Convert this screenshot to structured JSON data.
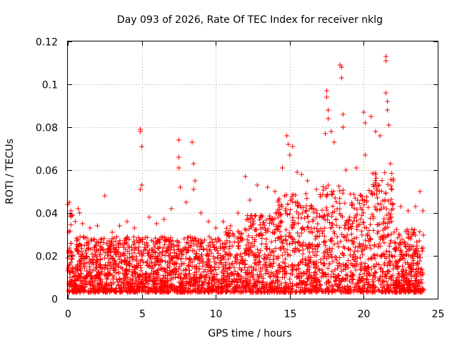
{
  "chart_data": {
    "type": "scatter",
    "title": "Day 093 of 2026, Rate Of TEC Index for receiver nklg",
    "xlabel": "GPS time / hours",
    "ylabel": "ROTI / TECUs",
    "xlim": [
      0,
      25
    ],
    "ylim": [
      0,
      0.12
    ],
    "xticks": [
      "0",
      "5",
      "10",
      "15",
      "20",
      "25"
    ],
    "yticks": [
      "0",
      "0.02",
      "0.04",
      "0.06",
      "0.08",
      "0.1",
      "0.12"
    ],
    "grid": true,
    "marker": "plus",
    "series": [
      {
        "color": "#ff0000",
        "points": [
          [
            0.0,
            0.044
          ],
          [
            0.1,
            0.045
          ],
          [
            0.2,
            0.041
          ],
          [
            0.3,
            0.039
          ],
          [
            0.5,
            0.036
          ],
          [
            0.7,
            0.042
          ],
          [
            0.8,
            0.04
          ],
          [
            1.0,
            0.035
          ],
          [
            1.5,
            0.033
          ],
          [
            2.0,
            0.034
          ],
          [
            2.5,
            0.048
          ],
          [
            3.0,
            0.031
          ],
          [
            3.5,
            0.034
          ],
          [
            4.0,
            0.036
          ],
          [
            4.5,
            0.033
          ],
          [
            4.9,
            0.079
          ],
          [
            4.9,
            0.078
          ],
          [
            5.0,
            0.071
          ],
          [
            5.0,
            0.053
          ],
          [
            4.9,
            0.051
          ],
          [
            5.5,
            0.038
          ],
          [
            6.0,
            0.035
          ],
          [
            6.5,
            0.037
          ],
          [
            7.0,
            0.042
          ],
          [
            7.5,
            0.074
          ],
          [
            7.5,
            0.066
          ],
          [
            7.5,
            0.061
          ],
          [
            7.6,
            0.052
          ],
          [
            8.0,
            0.045
          ],
          [
            8.4,
            0.073
          ],
          [
            8.5,
            0.063
          ],
          [
            8.6,
            0.055
          ],
          [
            8.5,
            0.051
          ],
          [
            9.0,
            0.04
          ],
          [
            9.5,
            0.036
          ],
          [
            10.0,
            0.033
          ],
          [
            10.5,
            0.036
          ],
          [
            11.0,
            0.034
          ],
          [
            11.5,
            0.04
          ],
          [
            12.0,
            0.057
          ],
          [
            12.3,
            0.046
          ],
          [
            12.8,
            0.053
          ],
          [
            13.5,
            0.052
          ],
          [
            14.0,
            0.05
          ],
          [
            14.5,
            0.061
          ],
          [
            14.8,
            0.076
          ],
          [
            14.9,
            0.072
          ],
          [
            15.0,
            0.067
          ],
          [
            15.2,
            0.071
          ],
          [
            15.5,
            0.059
          ],
          [
            15.8,
            0.058
          ],
          [
            16.2,
            0.055
          ],
          [
            16.8,
            0.051
          ],
          [
            17.4,
            0.077
          ],
          [
            17.5,
            0.097
          ],
          [
            17.5,
            0.094
          ],
          [
            17.6,
            0.088
          ],
          [
            17.6,
            0.084
          ],
          [
            17.8,
            0.078
          ],
          [
            18.0,
            0.073
          ],
          [
            18.4,
            0.109
          ],
          [
            18.5,
            0.108
          ],
          [
            18.5,
            0.103
          ],
          [
            18.6,
            0.086
          ],
          [
            18.6,
            0.08
          ],
          [
            18.8,
            0.06
          ],
          [
            19.5,
            0.061
          ],
          [
            20.0,
            0.087
          ],
          [
            20.1,
            0.082
          ],
          [
            20.1,
            0.067
          ],
          [
            20.5,
            0.085
          ],
          [
            20.8,
            0.078
          ],
          [
            21.1,
            0.076
          ],
          [
            21.5,
            0.113
          ],
          [
            21.5,
            0.111
          ],
          [
            21.5,
            0.096
          ],
          [
            21.6,
            0.092
          ],
          [
            21.6,
            0.088
          ],
          [
            21.7,
            0.081
          ],
          [
            21.8,
            0.063
          ],
          [
            22.0,
            0.055
          ],
          [
            22.5,
            0.043
          ],
          [
            23.0,
            0.041
          ],
          [
            23.5,
            0.043
          ],
          [
            23.8,
            0.05
          ],
          [
            24.0,
            0.041
          ]
        ]
      }
    ]
  }
}
